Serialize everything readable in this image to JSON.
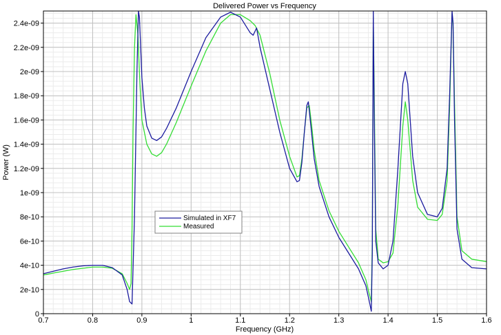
{
  "chart_data": {
    "type": "line",
    "title": "Delivered Power vs Frequency",
    "xlabel": "Frequency (GHz)",
    "ylabel": "Power (W)",
    "xlim": [
      0.7,
      1.6
    ],
    "ylim": [
      0,
      2.5e-09
    ],
    "x_ticks": [
      0.7,
      0.8,
      0.9,
      1.0,
      1.1,
      1.2,
      1.3,
      1.4,
      1.5,
      1.6
    ],
    "x_tick_labels": [
      "0.7",
      "0.8",
      "0.9",
      "1",
      "1.1",
      "1.2",
      "1.3",
      "1.4",
      "1.5",
      "1.6"
    ],
    "y_ticks": [
      0,
      2e-10,
      4e-10,
      6e-10,
      8e-10,
      1e-09,
      1.2e-09,
      1.4e-09,
      1.6e-09,
      1.8e-09,
      2e-09,
      2.2e-09,
      2.4e-09
    ],
    "y_tick_labels": [
      "0",
      "2e-10",
      "4e-10",
      "6e-10",
      "8e-10",
      "1e-09",
      "1.2e-09",
      "1.4e-09",
      "1.6e-09",
      "1.8e-09",
      "2e-09",
      "2.2e-09",
      "2.4e-09"
    ],
    "minor_x_step": 0.02,
    "minor_y_step": 4e-11,
    "grid": true,
    "legend_position": "center-left",
    "series": [
      {
        "name": "Simulated in XF7",
        "color": "#1a1a9e",
        "x": [
          0.7,
          0.72,
          0.74,
          0.76,
          0.78,
          0.8,
          0.82,
          0.84,
          0.86,
          0.87,
          0.875,
          0.88,
          0.885,
          0.89,
          0.893,
          0.895,
          0.9,
          0.905,
          0.91,
          0.92,
          0.93,
          0.94,
          0.95,
          0.97,
          1.0,
          1.03,
          1.06,
          1.08,
          1.1,
          1.12,
          1.126,
          1.133,
          1.14,
          1.16,
          1.18,
          1.2,
          1.215,
          1.22,
          1.225,
          1.23,
          1.235,
          1.238,
          1.242,
          1.25,
          1.26,
          1.28,
          1.3,
          1.32,
          1.34,
          1.355,
          1.362,
          1.366,
          1.368,
          1.37,
          1.372,
          1.375,
          1.38,
          1.39,
          1.4,
          1.41,
          1.42,
          1.43,
          1.435,
          1.44,
          1.45,
          1.46,
          1.48,
          1.5,
          1.51,
          1.52,
          1.525,
          1.53,
          1.532,
          1.535,
          1.54,
          1.55,
          1.57,
          1.6
        ],
        "y": [
          3.3e-10,
          3.5e-10,
          3.7e-10,
          3.85e-10,
          3.95e-10,
          4e-10,
          4e-10,
          3.8e-10,
          3.2e-10,
          2e-10,
          1e-10,
          8e-11,
          8e-10,
          2e-09,
          2.5e-09,
          2.45e-09,
          1.95e-09,
          1.7e-09,
          1.55e-09,
          1.45e-09,
          1.43e-09,
          1.46e-09,
          1.53e-09,
          1.7e-09,
          2e-09,
          2.28e-09,
          2.45e-09,
          2.49e-09,
          2.45e-09,
          2.32e-09,
          2.3e-09,
          2.36e-09,
          2.2e-09,
          1.85e-09,
          1.5e-09,
          1.2e-09,
          1.09e-09,
          1.1e-09,
          1.25e-09,
          1.5e-09,
          1.72e-09,
          1.75e-09,
          1.6e-09,
          1.28e-09,
          1.05e-09,
          8e-10,
          6.3e-10,
          5e-10,
          3.7e-10,
          2.3e-10,
          1e-10,
          2e-11,
          5e-10,
          2.5e-09,
          1.6e-09,
          6e-10,
          4.2e-10,
          3.7e-10,
          4e-10,
          6e-10,
          1.2e-09,
          1.9e-09,
          2e-09,
          1.9e-09,
          1.3e-09,
          1e-09,
          8.2e-10,
          8e-10,
          8.7e-10,
          1.2e-09,
          1.8e-09,
          2.5e-09,
          2.4e-09,
          1.6e-09,
          7e-10,
          4.5e-10,
          3.8e-10,
          3.7e-10
        ]
      },
      {
        "name": "Measured",
        "color": "#33dd33",
        "x": [
          0.7,
          0.72,
          0.74,
          0.76,
          0.78,
          0.8,
          0.82,
          0.84,
          0.86,
          0.87,
          0.875,
          0.878,
          0.88,
          0.882,
          0.885,
          0.888,
          0.892,
          0.896,
          0.9,
          0.91,
          0.92,
          0.93,
          0.94,
          0.95,
          0.97,
          1.0,
          1.03,
          1.06,
          1.08,
          1.1,
          1.12,
          1.13,
          1.14,
          1.16,
          1.18,
          1.2,
          1.215,
          1.22,
          1.225,
          1.23,
          1.235,
          1.24,
          1.245,
          1.25,
          1.26,
          1.28,
          1.3,
          1.32,
          1.34,
          1.355,
          1.362,
          1.366,
          1.368,
          1.37,
          1.372,
          1.375,
          1.38,
          1.39,
          1.4,
          1.41,
          1.42,
          1.43,
          1.435,
          1.44,
          1.45,
          1.46,
          1.48,
          1.5,
          1.51,
          1.52,
          1.525,
          1.53,
          1.532,
          1.535,
          1.54,
          1.55,
          1.57,
          1.6
        ],
        "y": [
          3.2e-10,
          3.35e-10,
          3.5e-10,
          3.65e-10,
          3.75e-10,
          3.85e-10,
          3.85e-10,
          3.75e-10,
          3.3e-10,
          2.5e-10,
          2e-10,
          2.5e-10,
          7e-10,
          1.5e-09,
          2.2e-09,
          2.47e-09,
          2.3e-09,
          1.9e-09,
          1.6e-09,
          1.4e-09,
          1.32e-09,
          1.3e-09,
          1.33e-09,
          1.4e-09,
          1.58e-09,
          1.88e-09,
          2.17e-09,
          2.4e-09,
          2.47e-09,
          2.47e-09,
          2.42e-09,
          2.38e-09,
          2.3e-09,
          1.98e-09,
          1.6e-09,
          1.3e-09,
          1.13e-09,
          1.14e-09,
          1.28e-09,
          1.5e-09,
          1.7e-09,
          1.72e-09,
          1.55e-09,
          1.35e-09,
          1.1e-09,
          8.5e-10,
          6.8e-10,
          5.5e-10,
          4.2e-10,
          2.8e-10,
          1.6e-10,
          1e-10,
          6e-10,
          2.45e-09,
          1.8e-09,
          7e-10,
          4.5e-10,
          4.2e-10,
          4.3e-10,
          5e-10,
          9e-10,
          1.55e-09,
          1.75e-09,
          1.6e-09,
          1.1e-09,
          8.8e-10,
          7.8e-10,
          7.7e-10,
          8.2e-10,
          1.1e-09,
          1.7e-09,
          2.48e-09,
          2.4e-09,
          1.75e-09,
          8e-10,
          5.2e-10,
          4.5e-10,
          4.3e-10
        ]
      }
    ]
  }
}
